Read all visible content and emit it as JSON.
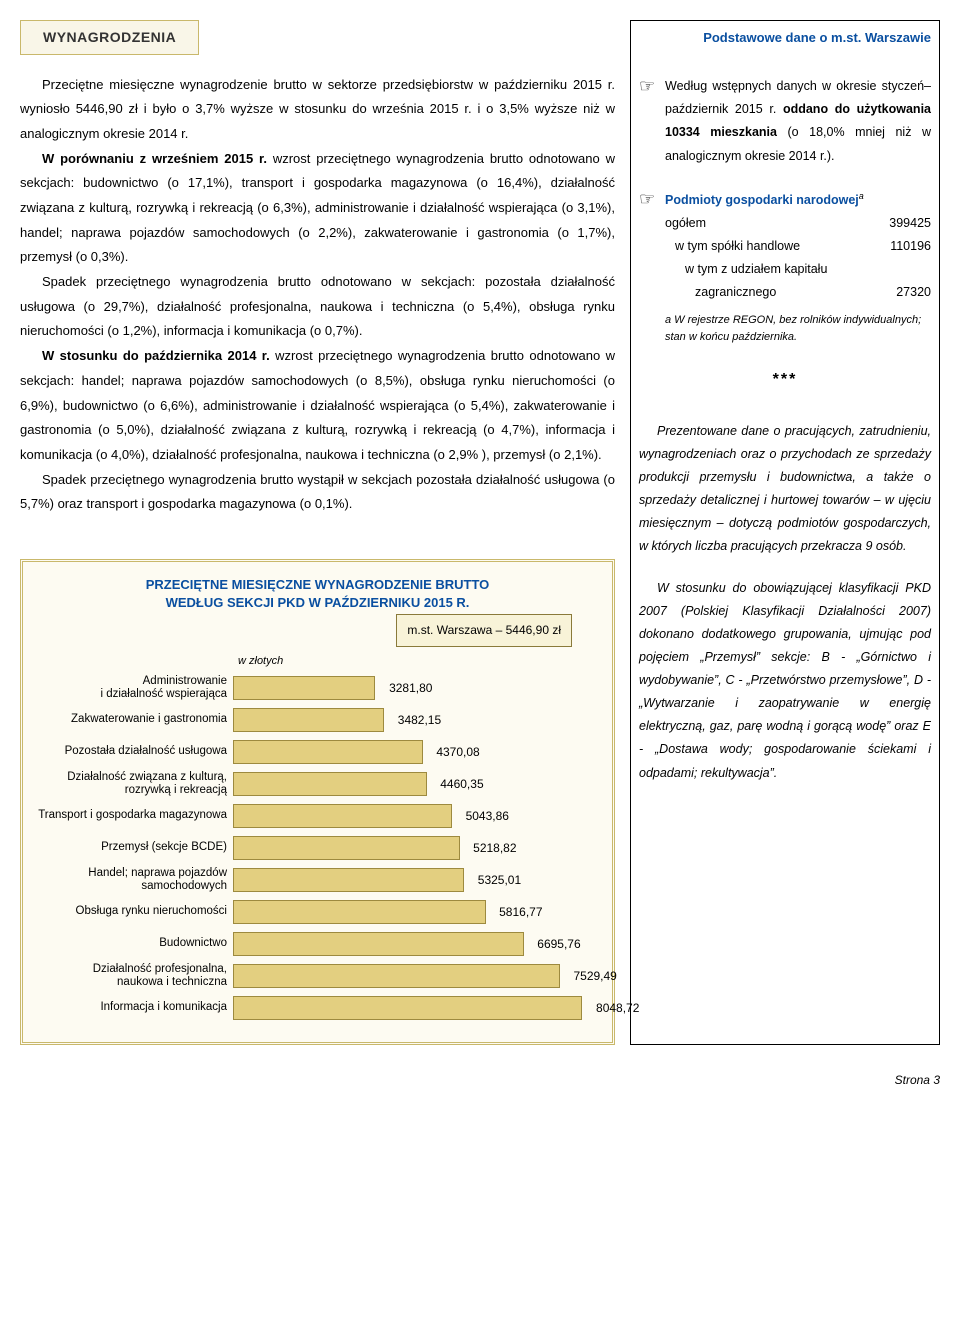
{
  "section_tab": "WYNAGRODZENIA",
  "main_paragraph": "Przeciętne miesięczne wynagrodzenie brutto w sektorze przedsiębiorstw w październiku 2015 r. wyniosło 5446,90 zł i było o 3,7% wyższe w stosunku do września 2015 r. i o 3,5% wyższe niż w analogicznym okresie 2014 r.",
  "main_p2_lead": "W porównaniu z wrześniem 2015 r.",
  "main_p2_rest": " wzrost przeciętnego wynagrodzenia brutto odnotowano w sekcjach: budownictwo (o 17,1%), transport i gospodarka magazynowa (o 16,4%), działalność związana z kulturą, rozrywką i rekreacją (o 6,3%), administrowanie i działalność wspierająca (o 3,1%), handel; naprawa pojazdów samochodowych (o 2,2%), zakwaterowanie i gastronomia (o 1,7%), przemysł (o 0,3%).",
  "main_p3": "Spadek przeciętnego wynagrodzenia brutto odnotowano w sekcjach: pozostała działalność usługowa (o 29,7%), działalność profesjonalna, naukowa i techniczna (o 5,4%), obsługa rynku nieruchomości (o 1,2%), informacja i komunikacja (o 0,7%).",
  "main_p4_lead": "W stosunku do października 2014 r.",
  "main_p4_rest": " wzrost przeciętnego wynagrodzenia brutto odnotowano w sekcjach: handel; naprawa pojazdów samochodowych (o 8,5%), obsługa rynku nieruchomości (o 6,9%), budownictwo (o 6,6%), administrowanie i działalność wspierająca (o 5,4%), zakwaterowanie i gastronomia (o 5,0%), działalność związana z kulturą, rozrywką i rekreacją (o 4,7%), informacja i komunikacja (o 4,0%), działalność profesjonalna, naukowa i techniczna (o 2,9% ), przemysł (o 2,1%).",
  "main_p5": "Spadek przeciętnego wynagrodzenia brutto wystąpił w sekcjach pozostała działalność usługowa (o 5,7%) oraz transport i gospodarka magazynowa  (o 0,1%).",
  "chart": {
    "title_l1": "PRZECIĘTNE  MIESIĘCZNE  WYNAGRODZENIE  BRUTTO",
    "title_l2": "WEDŁUG  SEKCJI  PKD  W PAŹDZIERNIKU  2015 R.",
    "note": "m.st. Warszawa – 5446,90 zł",
    "unit": "w złotych",
    "max": 8500,
    "bar_fill": "#e3cf80",
    "bar_border": "#9d8a3f",
    "bars": [
      {
        "label": "Administrowanie\ni działalność wspierająca",
        "value": "3281,80",
        "num": 3281.8
      },
      {
        "label": "Zakwaterowanie i gastronomia",
        "value": "3482,15",
        "num": 3482.15
      },
      {
        "label": "Pozostała działalność usługowa",
        "value": "4370,08",
        "num": 4370.08
      },
      {
        "label": "Działalność związana z kulturą,\nrozrywką i rekreacją",
        "value": "4460,35",
        "num": 4460.35
      },
      {
        "label": "Transport i gospodarka magazynowa",
        "value": "5043,86",
        "num": 5043.86
      },
      {
        "label": "Przemysł (sekcje BCDE)",
        "value": "5218,82",
        "num": 5218.82
      },
      {
        "label": "Handel; naprawa pojazdów\nsamochodowych",
        "value": "5325,01",
        "num": 5325.01
      },
      {
        "label": "Obsługa rynku nieruchomości",
        "value": "5816,77",
        "num": 5816.77
      },
      {
        "label": "Budownictwo",
        "value": "6695,76",
        "num": 6695.76
      },
      {
        "label": "Działalność profesjonalna,\nnaukowa i techniczna",
        "value": "7529,49",
        "num": 7529.49
      },
      {
        "label": "Informacja i komunikacja",
        "value": "8048,72",
        "num": 8048.72
      }
    ]
  },
  "sidebar": {
    "title": "Podstawowe dane o m.st. Warszawie",
    "item1_a": "Według wstępnych danych w okresie styczeń–październik 2015 r. ",
    "item1_b": "oddano do użytkowania 10334 mieszkania",
    "item1_c": " (o 18,0% mniej niż w analogicznym okresie 2014 r.).",
    "item2_head": "Podmioty gospodarki narodowej",
    "item2_rows": [
      {
        "label": "ogółem",
        "value": "399425",
        "indent": 0
      },
      {
        "label": "w tym spółki handlowe",
        "value": "110196",
        "indent": 1
      },
      {
        "label": "w tym z udziałem kapitału",
        "value": "",
        "indent": 2
      },
      {
        "label": "zagranicznego",
        "value": "27320",
        "indent": 3
      }
    ],
    "footnote": "a W rejestrze REGON, bez rolników indywidualnych; stan w końcu października.",
    "para1": "Prezentowane  dane o pracujących, zatrudnieniu, wynagrodzeniach oraz o przychodach ze sprzedaży produkcji przemysłu i budownictwa, a także o sprzedaży detalicznej i hurtowej towarów – w ujęciu miesięcznym – dotyczą podmiotów gospodarczych, w których liczba pracujących przekracza 9 osób.",
    "para2": "W stosunku do obowiązującej klasyfikacji PKD 2007 (Polskiej Klasyfikacji Działalności 2007) dokonano dodatkowego grupowania, ujmując pod pojęciem „Przemysł” sekcje: B - „Górnictwo i wydobywanie”, C - „Przetwórstwo przemysłowe”, D - „Wytwarzanie i zaopatrywanie w energię elektryczną, gaz, parę wodną i gorącą wodę” oraz E - „Dostawa wody; gospodarowanie ściekami i odpadami; rekultywacja”."
  },
  "footer": "Strona 3"
}
